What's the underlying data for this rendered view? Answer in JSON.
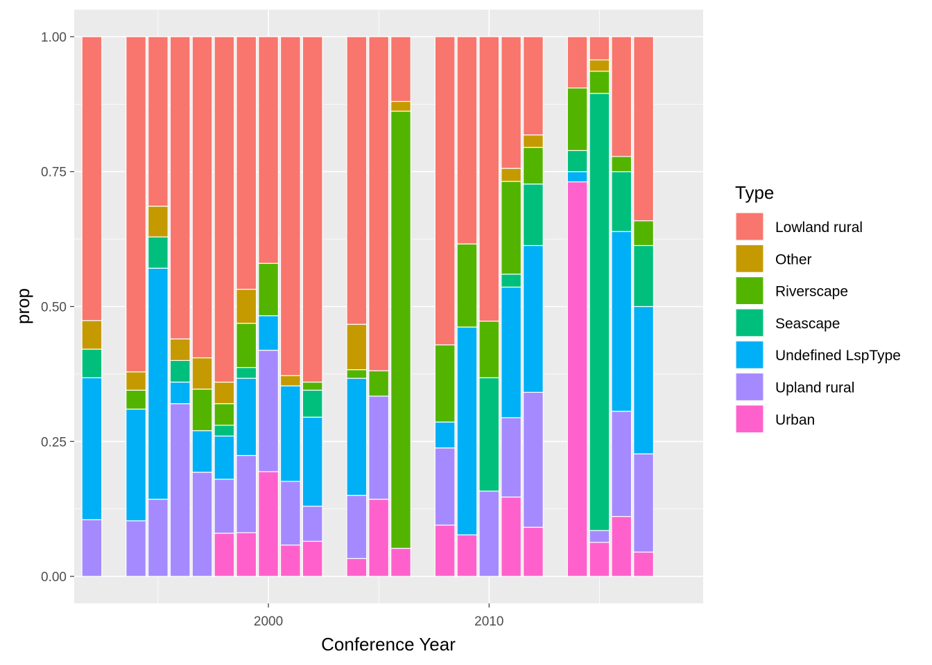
{
  "chart_data": {
    "type": "bar",
    "stacked": true,
    "xlabel": "Conference Year",
    "ylabel": "prop",
    "xlim": [
      1991.2,
      2019.7
    ],
    "ylim": [
      -0.05,
      1.05
    ],
    "x_ticks": [
      2000,
      2010
    ],
    "y_ticks": [
      "0.00",
      "0.25",
      "0.50",
      "0.75",
      "1.00"
    ],
    "grid": true,
    "legend": {
      "title": "Type",
      "position": "right"
    },
    "series": [
      {
        "name": "Urban",
        "color": "#FF61CC"
      },
      {
        "name": "Upland rural",
        "color": "#A58AFF"
      },
      {
        "name": "Undefined LspType",
        "color": "#00B0F6"
      },
      {
        "name": "Seascape",
        "color": "#00BF7D"
      },
      {
        "name": "Riverscape",
        "color": "#53B400"
      },
      {
        "name": "Other",
        "color": "#C49A00"
      },
      {
        "name": "Lowland rural",
        "color": "#F8766D"
      }
    ],
    "bars": [
      {
        "year": 1992,
        "values": [
          0,
          0.105,
          0.263,
          0.053,
          0,
          0.053,
          0.526
        ]
      },
      {
        "year": 1994,
        "values": [
          0,
          0.103,
          0.207,
          0.0,
          0.035,
          0.034,
          0.621
        ]
      },
      {
        "year": 1995,
        "values": [
          0,
          0.143,
          0.428,
          0.058,
          0,
          0.057,
          0.314
        ]
      },
      {
        "year": 1996,
        "values": [
          0,
          0.32,
          0.04,
          0.04,
          0,
          0.04,
          0.56
        ]
      },
      {
        "year": 1997,
        "values": [
          0,
          0.193,
          0.077,
          0,
          0.077,
          0.058,
          0.595
        ]
      },
      {
        "year": 1998,
        "values": [
          0.08,
          0.1,
          0.08,
          0.02,
          0.04,
          0.04,
          0.64
        ]
      },
      {
        "year": 1999,
        "values": [
          0.081,
          0.143,
          0.143,
          0.02,
          0.082,
          0.063,
          0.468
        ]
      },
      {
        "year": 2000,
        "values": [
          0.194,
          0.225,
          0.064,
          0,
          0.097,
          0,
          0.42
        ]
      },
      {
        "year": 2001,
        "values": [
          0.058,
          0.118,
          0.177,
          0,
          0,
          0.019,
          0.628
        ]
      },
      {
        "year": 2002,
        "values": [
          0.065,
          0.065,
          0.165,
          0.05,
          0.015,
          0,
          0.64
        ]
      },
      {
        "year": 2004,
        "values": [
          0.033,
          0.117,
          0.217,
          0,
          0.016,
          0.084,
          0.533
        ]
      },
      {
        "year": 2005,
        "values": [
          0.143,
          0.191,
          0,
          0,
          0.047,
          0,
          0.619
        ]
      },
      {
        "year": 2006,
        "values": [
          0.052,
          0,
          0,
          0,
          0.81,
          0.018,
          0.12
        ]
      },
      {
        "year": 2008,
        "values": [
          0.095,
          0.143,
          0.048,
          0,
          0.143,
          0,
          0.571
        ]
      },
      {
        "year": 2009,
        "values": [
          0.077,
          0,
          0.385,
          0,
          0.154,
          0,
          0.384
        ]
      },
      {
        "year": 2010,
        "values": [
          0,
          0.158,
          0,
          0.21,
          0.105,
          0,
          0.527
        ]
      },
      {
        "year": 2011,
        "values": [
          0.147,
          0.147,
          0.242,
          0.024,
          0.172,
          0.024,
          0.244
        ]
      },
      {
        "year": 2012,
        "values": [
          0.091,
          0.25,
          0.272,
          0.114,
          0.068,
          0.023,
          0.182
        ]
      },
      {
        "year": 2014,
        "values": [
          0.731,
          0,
          0.019,
          0.039,
          0.116,
          0,
          0.095
        ]
      },
      {
        "year": 2015,
        "values": [
          0.063,
          0.022,
          0,
          0.81,
          0.041,
          0.021,
          0.043
        ]
      },
      {
        "year": 2016,
        "values": [
          0.111,
          0.195,
          0.333,
          0.111,
          0.028,
          0,
          0.222
        ]
      },
      {
        "year": 2017,
        "values": [
          0.045,
          0.182,
          0.273,
          0.113,
          0.046,
          0,
          0.341
        ]
      }
    ]
  }
}
